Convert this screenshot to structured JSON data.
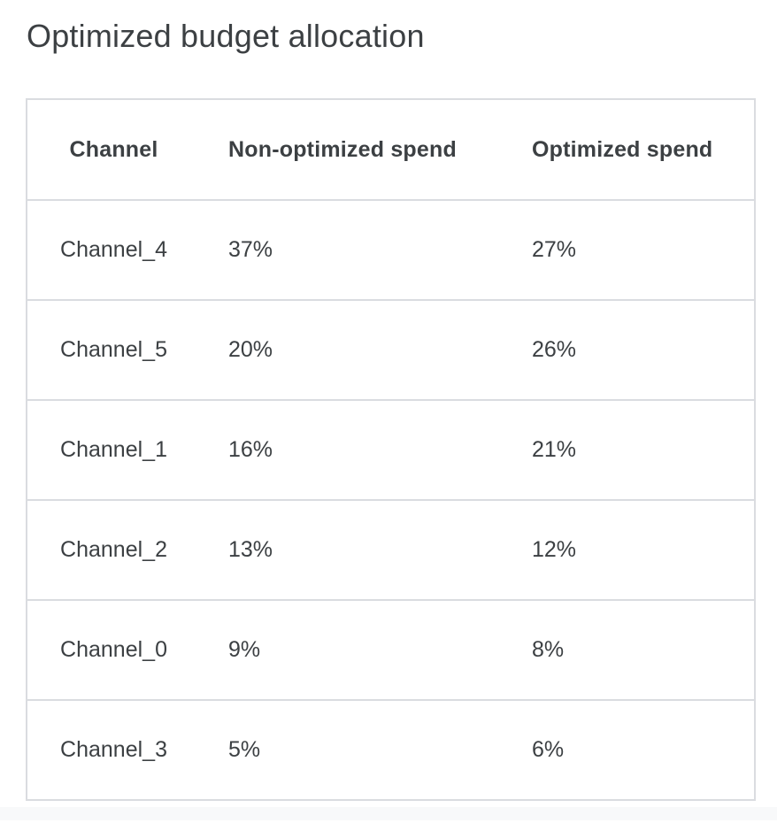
{
  "page": {
    "title": "Optimized budget allocation"
  },
  "table": {
    "columns": {
      "channel": "Channel",
      "non_optimized": "Non-optimized spend",
      "optimized": "Optimized spend"
    },
    "rows": [
      {
        "channel": "Channel_4",
        "non_optimized": "37%",
        "optimized": "27%"
      },
      {
        "channel": "Channel_5",
        "non_optimized": "20%",
        "optimized": "26%"
      },
      {
        "channel": "Channel_1",
        "non_optimized": "16%",
        "optimized": "21%"
      },
      {
        "channel": "Channel_2",
        "non_optimized": "13%",
        "optimized": "12%"
      },
      {
        "channel": "Channel_0",
        "non_optimized": "9%",
        "optimized": "8%"
      },
      {
        "channel": "Channel_3",
        "non_optimized": "5%",
        "optimized": "6%"
      }
    ]
  },
  "colors": {
    "title_text": "#3c4043",
    "table_text": "#3c4043",
    "table_border": "#dadce0",
    "footer_strip_background": "#f8f9fa",
    "page_background": "#ffffff"
  },
  "chart_data": {
    "type": "table",
    "title": "Optimized budget allocation",
    "columns": [
      "Channel",
      "Non-optimized spend",
      "Optimized spend"
    ],
    "categories": [
      "Channel_4",
      "Channel_5",
      "Channel_1",
      "Channel_2",
      "Channel_0",
      "Channel_3"
    ],
    "series": [
      {
        "name": "Non-optimized spend",
        "values": [
          37,
          20,
          16,
          13,
          9,
          5
        ],
        "unit": "%"
      },
      {
        "name": "Optimized spend",
        "values": [
          27,
          26,
          21,
          12,
          8,
          6
        ],
        "unit": "%"
      }
    ]
  }
}
